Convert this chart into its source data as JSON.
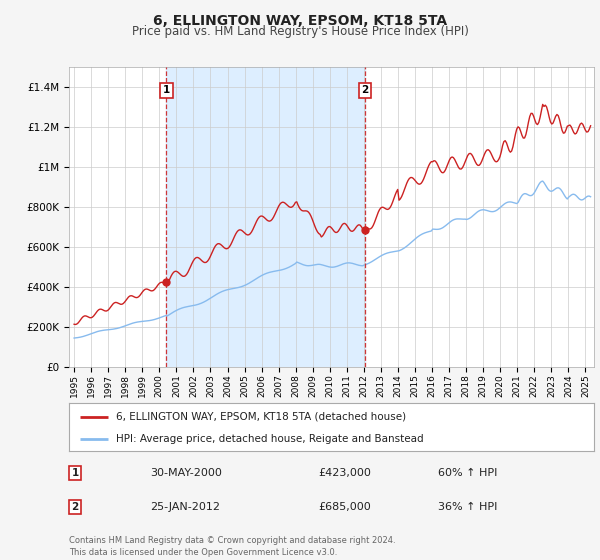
{
  "title": "6, ELLINGTON WAY, EPSOM, KT18 5TA",
  "subtitle": "Price paid vs. HM Land Registry's House Price Index (HPI)",
  "background_color": "#f5f5f5",
  "plot_bg_color": "#ffffff",
  "shaded_region_color": "#ddeeff",
  "red_line_color": "#cc2222",
  "blue_line_color": "#88bbee",
  "grid_color": "#cccccc",
  "ylim": [
    0,
    1500000
  ],
  "yticks": [
    0,
    200000,
    400000,
    600000,
    800000,
    1000000,
    1200000,
    1400000
  ],
  "ytick_labels": [
    "£0",
    "£200K",
    "£400K",
    "£600K",
    "£800K",
    "£1M",
    "£1.2M",
    "£1.4M"
  ],
  "xlim_start": 1994.7,
  "xlim_end": 2025.5,
  "transaction1_x": 2000.42,
  "transaction1_y": 423000,
  "transaction1_label": "1",
  "transaction1_date": "30-MAY-2000",
  "transaction1_price": "£423,000",
  "transaction1_hpi": "60% ↑ HPI",
  "transaction2_x": 2012.08,
  "transaction2_y": 685000,
  "transaction2_label": "2",
  "transaction2_date": "25-JAN-2012",
  "transaction2_price": "£685,000",
  "transaction2_hpi": "36% ↑ HPI",
  "legend_line1": "6, ELLINGTON WAY, EPSOM, KT18 5TA (detached house)",
  "legend_line2": "HPI: Average price, detached house, Reigate and Banstead",
  "footnote1": "Contains HM Land Registry data © Crown copyright and database right 2024.",
  "footnote2": "This data is licensed under the Open Government Licence v3.0."
}
